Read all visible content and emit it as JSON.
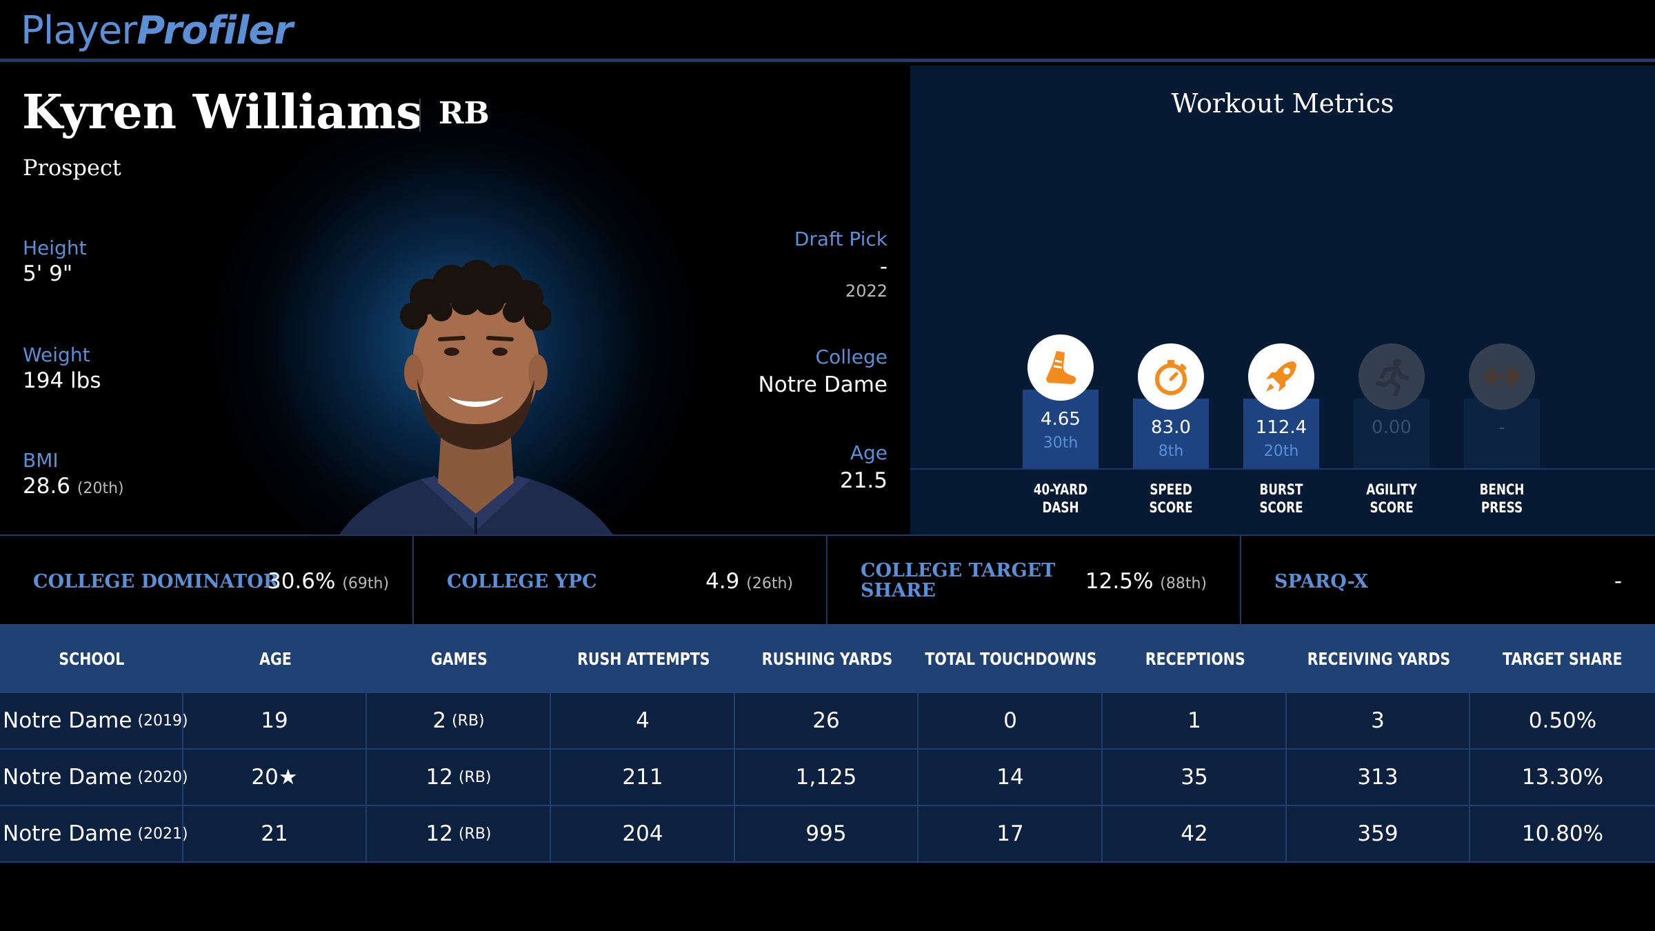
{
  "header": {
    "logo_part1": "Player",
    "logo_part2": "Profiler"
  },
  "player": {
    "name": "Kyren Williams",
    "position": "RB",
    "status": "Prospect"
  },
  "bio": {
    "height_label": "Height",
    "height_value": "5' 9\"",
    "weight_label": "Weight",
    "weight_value": "194 lbs",
    "bmi_label": "BMI",
    "bmi_value": "28.6",
    "bmi_rank": "(20th)",
    "draft_label": "Draft Pick",
    "draft_value": "-",
    "draft_year": "2022",
    "college_label": "College",
    "college_value": "Notre Dame",
    "age_label": "Age",
    "age_value": "21.5"
  },
  "workout": {
    "title": "Workout Metrics",
    "metrics": [
      {
        "value": "4.65",
        "rank": "30th",
        "label1": "40-YARD",
        "label2": "DASH",
        "icon": "running-shoe-icon"
      },
      {
        "value": "83.0",
        "rank": "8th",
        "label1": "SPEED",
        "label2": "SCORE",
        "icon": "stopwatch-icon"
      },
      {
        "value": "112.4",
        "rank": "20th",
        "label1": "BURST",
        "label2": "SCORE",
        "icon": "rocket-icon"
      },
      {
        "value": "0.00",
        "rank": "",
        "label1": "AGILITY",
        "label2": "SCORE",
        "icon": "runner-icon"
      },
      {
        "value": "-",
        "rank": "",
        "label1": "BENCH",
        "label2": "PRESS",
        "icon": "dumbbell-icon"
      }
    ]
  },
  "summary": [
    {
      "label": "COLLEGE DOMINATOR",
      "value": "30.6%",
      "rank": "(69th)"
    },
    {
      "label": "COLLEGE YPC",
      "value": "4.9",
      "rank": "(26th)"
    },
    {
      "label_line1": "COLLEGE TARGET",
      "label_line2": "SHARE",
      "value": "12.5%",
      "rank": "(88th)"
    },
    {
      "label": "SPARQ-X",
      "value": "-",
      "rank": ""
    }
  ],
  "table": {
    "headers": [
      "SCHOOL",
      "AGE",
      "GAMES",
      "RUSH ATTEMPTS",
      "RUSHING YARDS",
      "TOTAL TOUCHDOWNS",
      "RECEPTIONS",
      "RECEIVING YARDS",
      "TARGET SHARE"
    ],
    "rows": [
      {
        "school": "Notre Dame",
        "year": "(2019)",
        "age": "19",
        "games": "2",
        "games_pos": "(RB)",
        "rush_att": "4",
        "rush_yds": "26",
        "tds": "0",
        "rec": "1",
        "rec_yds": "3",
        "tgt_share": "0.50%"
      },
      {
        "school": "Notre Dame",
        "year": "(2020)",
        "age": "20★",
        "games": "12",
        "games_pos": "(RB)",
        "rush_att": "211",
        "rush_yds": "1,125",
        "tds": "14",
        "rec": "35",
        "rec_yds": "313",
        "tgt_share": "13.30%"
      },
      {
        "school": "Notre Dame",
        "year": "(2021)",
        "age": "21",
        "games": "12",
        "games_pos": "(RB)",
        "rush_att": "204",
        "rush_yds": "995",
        "tds": "17",
        "rec": "42",
        "rec_yds": "359",
        "tgt_share": "10.80%"
      }
    ]
  },
  "colors": {
    "accent_blue": "#5b8fd6",
    "metric_orange": "#f28c1c",
    "header_row": "#1f4174",
    "panel_navy": "#071a33"
  }
}
